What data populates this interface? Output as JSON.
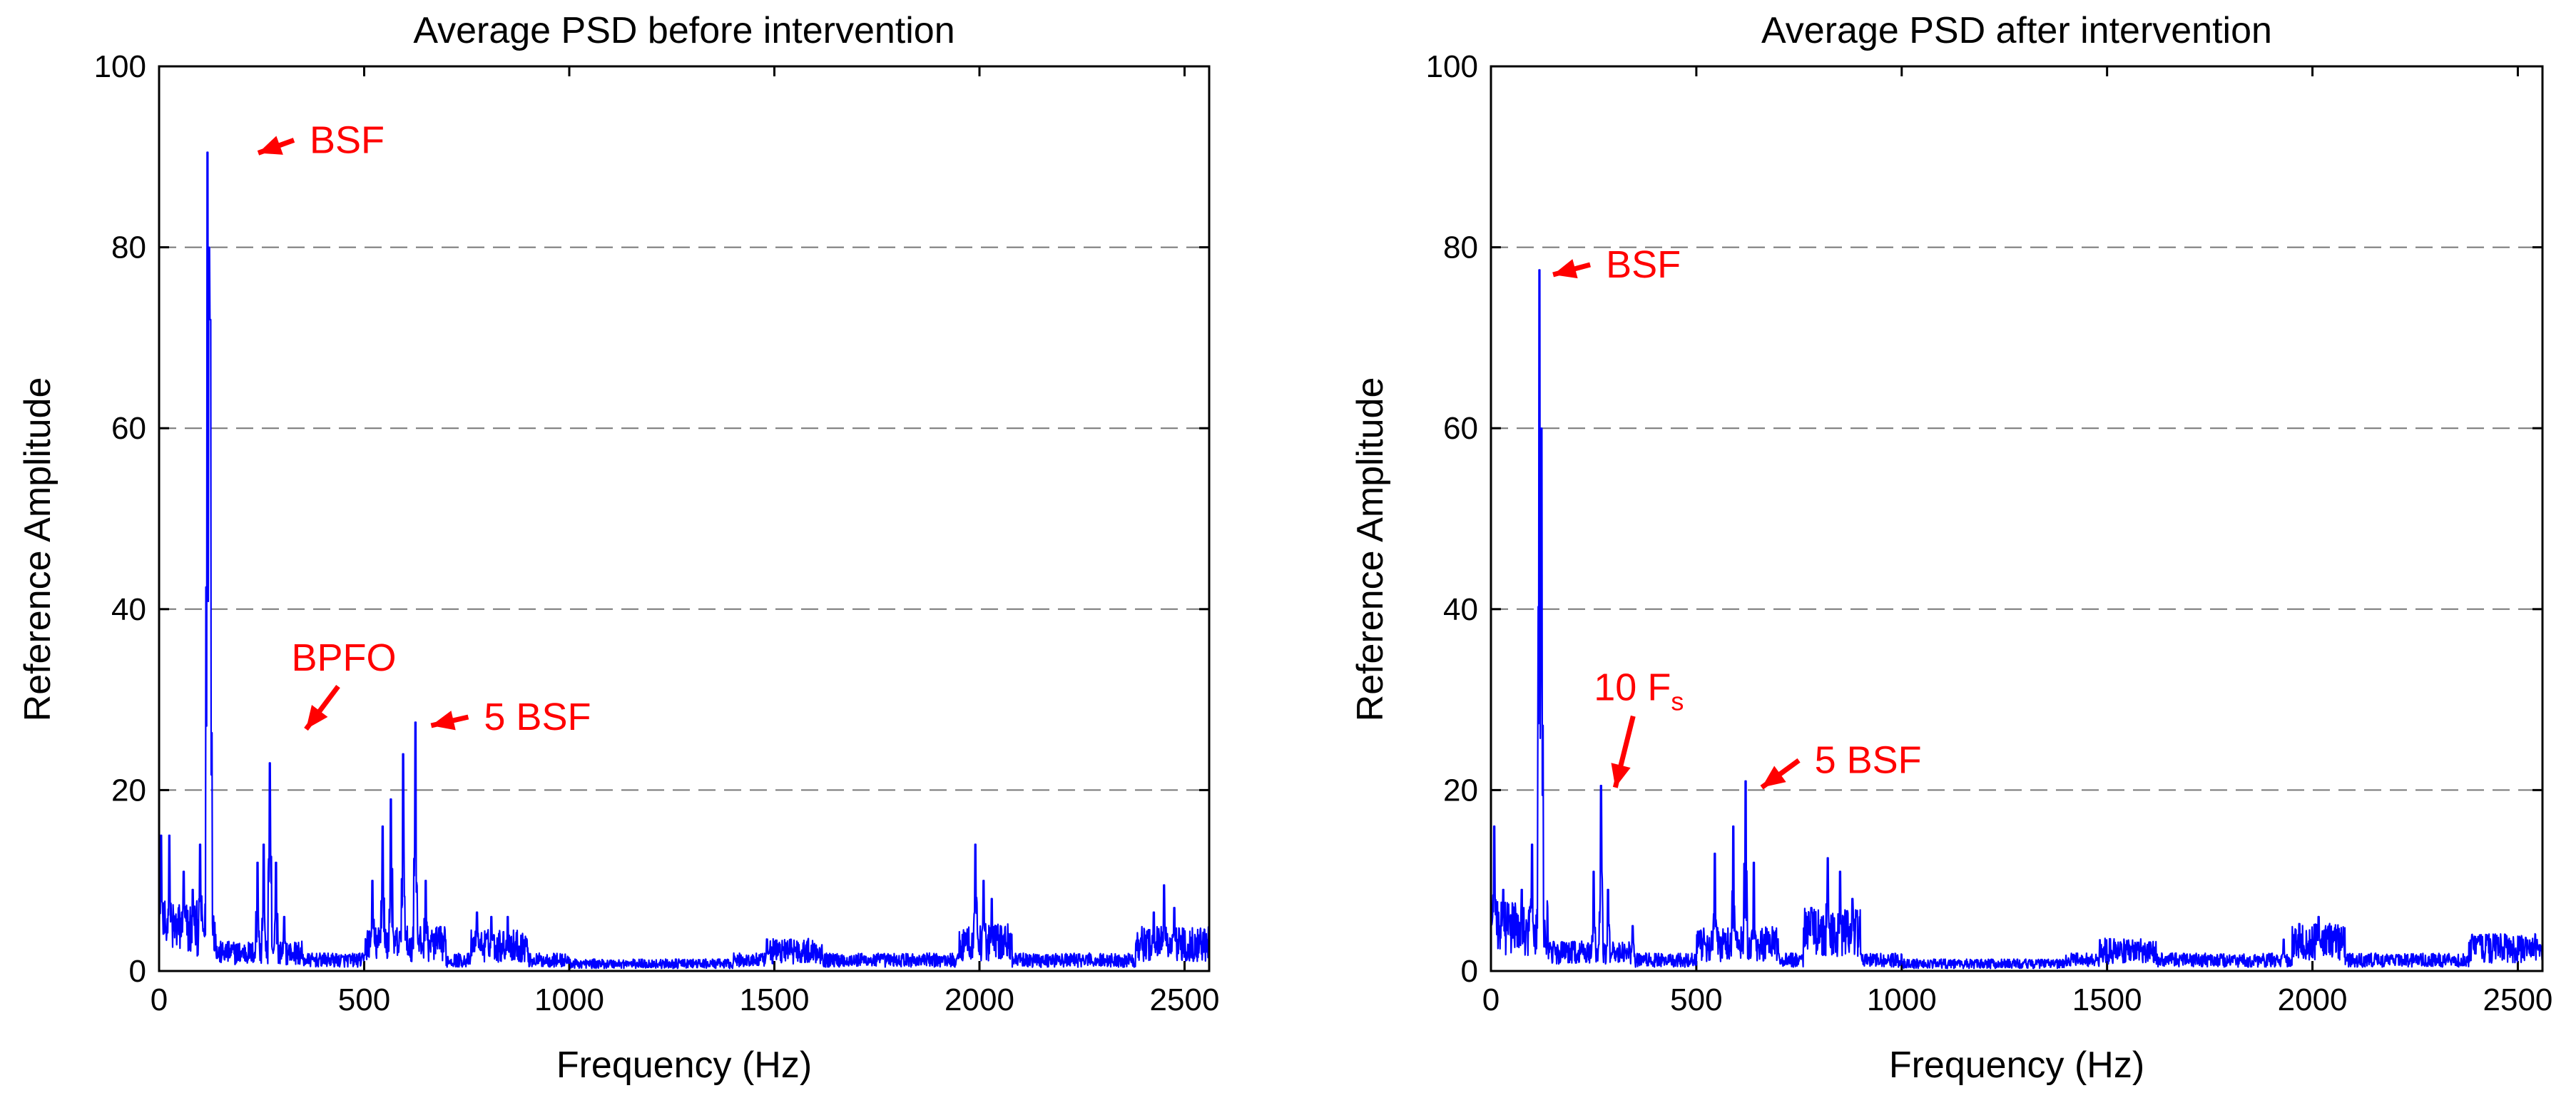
{
  "chart_data": [
    {
      "type": "line",
      "title": "Average PSD before intervention",
      "xlabel": "Frequency (Hz)",
      "ylabel": "Reference Amplitude",
      "xlim": [
        0,
        2560
      ],
      "ylim": [
        0,
        100
      ],
      "xticks": [
        0,
        500,
        1000,
        1500,
        2000,
        2500
      ],
      "yticks": [
        0,
        20,
        40,
        60,
        80,
        100
      ],
      "grid": "horizontal-dashed",
      "color": "#0000ff",
      "annotation_color": "#ff0000",
      "peaks": [
        {
          "x": 5,
          "y": 15
        },
        {
          "x": 25,
          "y": 15
        },
        {
          "x": 60,
          "y": 11
        },
        {
          "x": 82,
          "y": 9
        },
        {
          "x": 100,
          "y": 14
        },
        {
          "x": 118,
          "y": 90.5
        },
        {
          "x": 122,
          "y": 80
        },
        {
          "x": 125,
          "y": 72
        },
        {
          "x": 240,
          "y": 12
        },
        {
          "x": 255,
          "y": 14
        },
        {
          "x": 270,
          "y": 23
        },
        {
          "x": 285,
          "y": 12
        },
        {
          "x": 305,
          "y": 6
        },
        {
          "x": 520,
          "y": 10
        },
        {
          "x": 545,
          "y": 16
        },
        {
          "x": 565,
          "y": 19
        },
        {
          "x": 595,
          "y": 24
        },
        {
          "x": 625,
          "y": 27.5
        },
        {
          "x": 650,
          "y": 10
        },
        {
          "x": 775,
          "y": 6.5
        },
        {
          "x": 810,
          "y": 6
        },
        {
          "x": 850,
          "y": 6
        },
        {
          "x": 1540,
          "y": 3.5
        },
        {
          "x": 1990,
          "y": 14
        },
        {
          "x": 2010,
          "y": 10
        },
        {
          "x": 2030,
          "y": 8
        },
        {
          "x": 2425,
          "y": 6.5
        },
        {
          "x": 2450,
          "y": 9.5
        },
        {
          "x": 2475,
          "y": 7
        }
      ],
      "annotations": [
        {
          "text": "BSF",
          "x": 120,
          "y": 89
        },
        {
          "text": "BPFO",
          "x": 280,
          "y": 22
        },
        {
          "text": "5 BSF",
          "x": 632,
          "y": 26.5
        }
      ]
    },
    {
      "type": "line",
      "title": "Average PSD after intervention",
      "xlabel": "Frequency (Hz)",
      "ylabel": "Reference Amplitude",
      "xlim": [
        0,
        2560
      ],
      "ylim": [
        0,
        100
      ],
      "xticks": [
        0,
        500,
        1000,
        1500,
        2000,
        2500
      ],
      "yticks": [
        0,
        20,
        40,
        60,
        80,
        100
      ],
      "grid": "horizontal-dashed",
      "color": "#0000ff",
      "annotation_color": "#ff0000",
      "peaks": [
        {
          "x": 8,
          "y": 16
        },
        {
          "x": 30,
          "y": 9
        },
        {
          "x": 75,
          "y": 9
        },
        {
          "x": 100,
          "y": 14
        },
        {
          "x": 118,
          "y": 77.5
        },
        {
          "x": 123,
          "y": 60
        },
        {
          "x": 250,
          "y": 11
        },
        {
          "x": 268,
          "y": 20.5
        },
        {
          "x": 285,
          "y": 9
        },
        {
          "x": 345,
          "y": 5
        },
        {
          "x": 545,
          "y": 13
        },
        {
          "x": 590,
          "y": 16
        },
        {
          "x": 620,
          "y": 21
        },
        {
          "x": 640,
          "y": 12
        },
        {
          "x": 780,
          "y": 7
        },
        {
          "x": 820,
          "y": 12.5
        },
        {
          "x": 850,
          "y": 11
        },
        {
          "x": 880,
          "y": 8
        },
        {
          "x": 1560,
          "y": 2.5
        },
        {
          "x": 1930,
          "y": 3.5
        },
        {
          "x": 2015,
          "y": 6
        },
        {
          "x": 2410,
          "y": 4
        },
        {
          "x": 2450,
          "y": 3
        }
      ],
      "annotations": [
        {
          "text": "BSF",
          "x": 120,
          "y": 76.5
        },
        {
          "text": "10 F",
          "subscript": "s",
          "x": 268,
          "y": 19.5
        },
        {
          "text": "5 BSF",
          "x": 628,
          "y": 19.5
        }
      ]
    }
  ]
}
